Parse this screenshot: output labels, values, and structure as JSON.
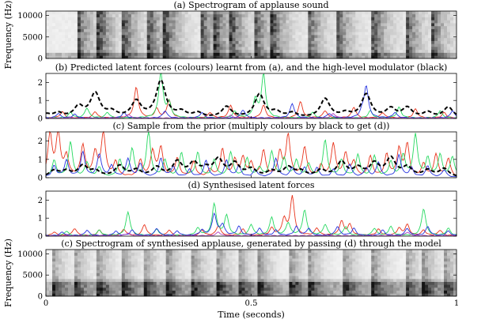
{
  "chart_data": [
    {
      "type": "heatmap",
      "title": "(a) Spectrogram of applause sound",
      "ylabel": "Frequency (Hz)",
      "ylim": [
        0,
        11025
      ],
      "yticks": [
        0,
        5000,
        10000
      ],
      "xlim": [
        0,
        1
      ],
      "onsets": [
        0.08,
        0.13,
        0.19,
        0.25,
        0.29,
        0.38,
        0.41,
        0.45,
        0.51,
        0.55,
        0.64,
        0.71,
        0.8,
        0.88,
        0.94
      ]
    },
    {
      "type": "line",
      "title": "(b) Predicted latent forces (colours) learnt from (a), and the high-level modulator (black)",
      "ylim": [
        0,
        2.5
      ],
      "yticks": [
        0,
        1,
        2
      ],
      "xlim": [
        0,
        1
      ],
      "series": [
        {
          "name": "red",
          "color": "#e8341c",
          "peaks": [
            [
              0.04,
              0.35
            ],
            [
              0.12,
              0.35
            ],
            [
              0.22,
              1.7
            ],
            [
              0.27,
              0.5
            ],
            [
              0.3,
              1.0
            ],
            [
              0.4,
              0.3
            ],
            [
              0.45,
              0.7
            ],
            [
              0.53,
              0.7
            ],
            [
              0.62,
              0.9
            ],
            [
              0.68,
              0.4
            ],
            [
              0.75,
              0.6
            ],
            [
              0.82,
              0.3
            ],
            [
              0.9,
              0.5
            ],
            [
              0.97,
              0.3
            ]
          ]
        },
        {
          "name": "green",
          "color": "#26d960",
          "peaks": [
            [
              0.06,
              0.3
            ],
            [
              0.1,
              0.55
            ],
            [
              0.15,
              0.3
            ],
            [
              0.28,
              2.5
            ],
            [
              0.3,
              0.8
            ],
            [
              0.46,
              0.35
            ],
            [
              0.51,
              1.0
            ],
            [
              0.53,
              2.4
            ],
            [
              0.65,
              0.3
            ],
            [
              0.79,
              0.4
            ],
            [
              0.86,
              0.6
            ],
            [
              0.96,
              0.4
            ]
          ]
        },
        {
          "name": "blue",
          "color": "#2633e0",
          "peaks": [
            [
              0.03,
              0.25
            ],
            [
              0.07,
              0.2
            ],
            [
              0.19,
              0.3
            ],
            [
              0.29,
              0.4
            ],
            [
              0.38,
              0.3
            ],
            [
              0.48,
              0.45
            ],
            [
              0.6,
              0.8
            ],
            [
              0.69,
              0.25
            ],
            [
              0.77,
              0.3
            ],
            [
              0.78,
              1.75
            ],
            [
              0.85,
              0.3
            ],
            [
              0.99,
              0.4
            ]
          ]
        },
        {
          "name": "purple",
          "color": "#b040c0",
          "peaks": [
            [
              0.2,
              0.2
            ],
            [
              0.45,
              0.15
            ],
            [
              0.7,
              0.25
            ]
          ]
        },
        {
          "name": "modulator",
          "color": "#000000",
          "dashed": true,
          "peaks": [
            [
              0.0,
              0.2
            ],
            [
              0.03,
              0.25
            ],
            [
              0.08,
              0.6
            ],
            [
              0.12,
              1.35
            ],
            [
              0.16,
              0.3
            ],
            [
              0.22,
              0.9
            ],
            [
              0.28,
              2.05
            ],
            [
              0.33,
              0.3
            ],
            [
              0.37,
              0.25
            ],
            [
              0.44,
              0.6
            ],
            [
              0.52,
              1.3
            ],
            [
              0.56,
              0.3
            ],
            [
              0.6,
              0.25
            ],
            [
              0.68,
              1.05
            ],
            [
              0.73,
              0.25
            ],
            [
              0.78,
              1.3
            ],
            [
              0.84,
              0.5
            ],
            [
              0.88,
              0.55
            ],
            [
              0.93,
              0.3
            ],
            [
              0.98,
              0.6
            ]
          ]
        }
      ]
    },
    {
      "type": "line",
      "title": "(c) Sample from the prior (multiply colours by black to get (d))",
      "ylim": [
        0,
        2.5
      ],
      "yticks": [
        0,
        1,
        2
      ],
      "xlim": [
        0,
        1
      ],
      "series": [
        {
          "name": "red",
          "color": "#e8341c",
          "peaks": [
            [
              0.01,
              2.3
            ],
            [
              0.03,
              2.4
            ],
            [
              0.05,
              1.1
            ],
            [
              0.09,
              1.7
            ],
            [
              0.12,
              1.3
            ],
            [
              0.14,
              2.4
            ],
            [
              0.17,
              0.8
            ],
            [
              0.23,
              0.9
            ],
            [
              0.26,
              1.4
            ],
            [
              0.28,
              1.6
            ],
            [
              0.32,
              1.0
            ],
            [
              0.36,
              0.8
            ],
            [
              0.4,
              0.4
            ],
            [
              0.43,
              1.5
            ],
            [
              0.46,
              0.9
            ],
            [
              0.48,
              1.0
            ],
            [
              0.5,
              0.7
            ],
            [
              0.53,
              1.4
            ],
            [
              0.57,
              1.3
            ],
            [
              0.59,
              2.25
            ],
            [
              0.63,
              1.6
            ],
            [
              0.67,
              0.6
            ],
            [
              0.7,
              1.8
            ],
            [
              0.73,
              1.25
            ],
            [
              0.75,
              0.8
            ],
            [
              0.79,
              1.1
            ],
            [
              0.83,
              1.2
            ],
            [
              0.86,
              1.5
            ],
            [
              0.88,
              1.75
            ],
            [
              0.92,
              0.7
            ],
            [
              0.95,
              1.2
            ],
            [
              0.98,
              1.0
            ]
          ]
        },
        {
          "name": "green",
          "color": "#26d960",
          "peaks": [
            [
              0.02,
              0.9
            ],
            [
              0.06,
              1.9
            ],
            [
              0.1,
              0.8
            ],
            [
              0.13,
              0.5
            ],
            [
              0.18,
              0.9
            ],
            [
              0.21,
              1.5
            ],
            [
              0.25,
              2.45
            ],
            [
              0.29,
              0.9
            ],
            [
              0.33,
              1.3
            ],
            [
              0.37,
              1.3
            ],
            [
              0.41,
              0.9
            ],
            [
              0.45,
              1.35
            ],
            [
              0.49,
              1.0
            ],
            [
              0.52,
              0.5
            ],
            [
              0.55,
              1.35
            ],
            [
              0.58,
              1.0
            ],
            [
              0.61,
              0.9
            ],
            [
              0.64,
              0.7
            ],
            [
              0.68,
              2.0
            ],
            [
              0.72,
              0.9
            ],
            [
              0.76,
              1.2
            ],
            [
              0.8,
              1.15
            ],
            [
              0.84,
              0.8
            ],
            [
              0.87,
              1.2
            ],
            [
              0.9,
              2.3
            ],
            [
              0.93,
              1.0
            ],
            [
              0.96,
              1.2
            ],
            [
              0.99,
              1.1
            ]
          ]
        },
        {
          "name": "blue",
          "color": "#2633e0",
          "peaks": [
            [
              0.02,
              0.6
            ],
            [
              0.05,
              0.9
            ],
            [
              0.09,
              1.35
            ],
            [
              0.13,
              1.25
            ],
            [
              0.16,
              0.6
            ],
            [
              0.2,
              1.0
            ],
            [
              0.23,
              0.7
            ],
            [
              0.28,
              1.0
            ],
            [
              0.31,
              0.55
            ],
            [
              0.35,
              0.4
            ],
            [
              0.39,
              0.9
            ],
            [
              0.44,
              0.9
            ],
            [
              0.47,
              0.6
            ],
            [
              0.51,
              0.4
            ],
            [
              0.56,
              1.0
            ],
            [
              0.6,
              0.5
            ],
            [
              0.63,
              0.5
            ],
            [
              0.66,
              0.5
            ],
            [
              0.7,
              0.4
            ],
            [
              0.74,
              0.7
            ],
            [
              0.78,
              0.5
            ],
            [
              0.81,
              0.8
            ],
            [
              0.86,
              1.2
            ],
            [
              0.89,
              0.5
            ],
            [
              0.93,
              0.6
            ],
            [
              0.97,
              0.4
            ]
          ]
        },
        {
          "name": "modulator",
          "color": "#000000",
          "dashed": true,
          "peaks": [
            [
              0.02,
              0.35
            ],
            [
              0.05,
              0.3
            ],
            [
              0.09,
              0.6
            ],
            [
              0.12,
              0.3
            ],
            [
              0.18,
              0.6
            ],
            [
              0.22,
              0.35
            ],
            [
              0.27,
              0.5
            ],
            [
              0.32,
              0.8
            ],
            [
              0.36,
              0.7
            ],
            [
              0.39,
              0.35
            ],
            [
              0.42,
              0.9
            ],
            [
              0.46,
              0.7
            ],
            [
              0.5,
              0.4
            ],
            [
              0.55,
              0.3
            ],
            [
              0.59,
              0.5
            ],
            [
              0.62,
              0.3
            ],
            [
              0.67,
              0.35
            ],
            [
              0.72,
              0.8
            ],
            [
              0.76,
              0.45
            ],
            [
              0.8,
              0.7
            ],
            [
              0.84,
              1.0
            ],
            [
              0.88,
              0.5
            ],
            [
              0.93,
              0.35
            ],
            [
              0.97,
              0.45
            ]
          ]
        }
      ]
    },
    {
      "type": "line",
      "title": "(d) Synthesised latent forces",
      "ylim": [
        0,
        2.5
      ],
      "yticks": [
        0,
        1,
        2
      ],
      "xlim": [
        0,
        1
      ],
      "series": [
        {
          "name": "red",
          "color": "#e8341c",
          "peaks": [
            [
              0.02,
              0.2
            ],
            [
              0.07,
              0.4
            ],
            [
              0.13,
              0.3
            ],
            [
              0.19,
              0.35
            ],
            [
              0.24,
              0.6
            ],
            [
              0.3,
              0.3
            ],
            [
              0.38,
              0.3
            ],
            [
              0.42,
              0.55
            ],
            [
              0.48,
              0.35
            ],
            [
              0.55,
              0.4
            ],
            [
              0.58,
              0.9
            ],
            [
              0.6,
              2.15
            ],
            [
              0.66,
              0.4
            ],
            [
              0.72,
              0.8
            ],
            [
              0.74,
              0.6
            ],
            [
              0.81,
              0.35
            ],
            [
              0.86,
              0.4
            ],
            [
              0.88,
              0.6
            ],
            [
              0.92,
              0.3
            ],
            [
              0.96,
              0.3
            ]
          ]
        },
        {
          "name": "green",
          "color": "#26d960",
          "peaks": [
            [
              0.05,
              0.25
            ],
            [
              0.13,
              0.3
            ],
            [
              0.2,
              1.3
            ],
            [
              0.27,
              0.35
            ],
            [
              0.37,
              0.4
            ],
            [
              0.41,
              1.75
            ],
            [
              0.44,
              1.1
            ],
            [
              0.5,
              0.6
            ],
            [
              0.55,
              1.0
            ],
            [
              0.59,
              0.7
            ],
            [
              0.63,
              1.4
            ],
            [
              0.68,
              0.6
            ],
            [
              0.73,
              0.5
            ],
            [
              0.8,
              0.4
            ],
            [
              0.84,
              0.5
            ],
            [
              0.92,
              1.5
            ],
            [
              0.98,
              0.4
            ]
          ]
        },
        {
          "name": "blue",
          "color": "#2633e0",
          "peaks": [
            [
              0.04,
              0.2
            ],
            [
              0.1,
              0.3
            ],
            [
              0.17,
              0.25
            ],
            [
              0.21,
              0.3
            ],
            [
              0.27,
              0.4
            ],
            [
              0.32,
              0.25
            ],
            [
              0.38,
              0.3
            ],
            [
              0.41,
              1.2
            ],
            [
              0.43,
              0.6
            ],
            [
              0.47,
              0.5
            ],
            [
              0.52,
              0.4
            ],
            [
              0.56,
              0.3
            ],
            [
              0.61,
              0.5
            ],
            [
              0.64,
              0.4
            ],
            [
              0.71,
              0.5
            ],
            [
              0.75,
              0.4
            ],
            [
              0.82,
              0.3
            ],
            [
              0.88,
              0.4
            ],
            [
              0.93,
              0.5
            ],
            [
              0.98,
              0.25
            ]
          ]
        },
        {
          "name": "purple",
          "color": "#b040c0",
          "peaks": [
            [
              0.2,
              0.15
            ],
            [
              0.42,
              0.2
            ],
            [
              0.88,
              0.2
            ]
          ]
        }
      ]
    },
    {
      "type": "heatmap",
      "title": "(c) Spectrogram of synthesised applause, generated by passing (d) through the model",
      "ylabel": "Frequency (Hz)",
      "ylim": [
        0,
        11025
      ],
      "yticks": [
        0,
        5000,
        10000
      ],
      "xlim": [
        0,
        1
      ],
      "xlabel": "Time (seconds)",
      "xticks": [
        0,
        0.5,
        1
      ],
      "onsets": [
        0.02,
        0.07,
        0.13,
        0.19,
        0.24,
        0.3,
        0.36,
        0.42,
        0.47,
        0.52,
        0.6,
        0.64,
        0.73,
        0.8,
        0.88,
        0.92,
        0.97
      ]
    }
  ]
}
